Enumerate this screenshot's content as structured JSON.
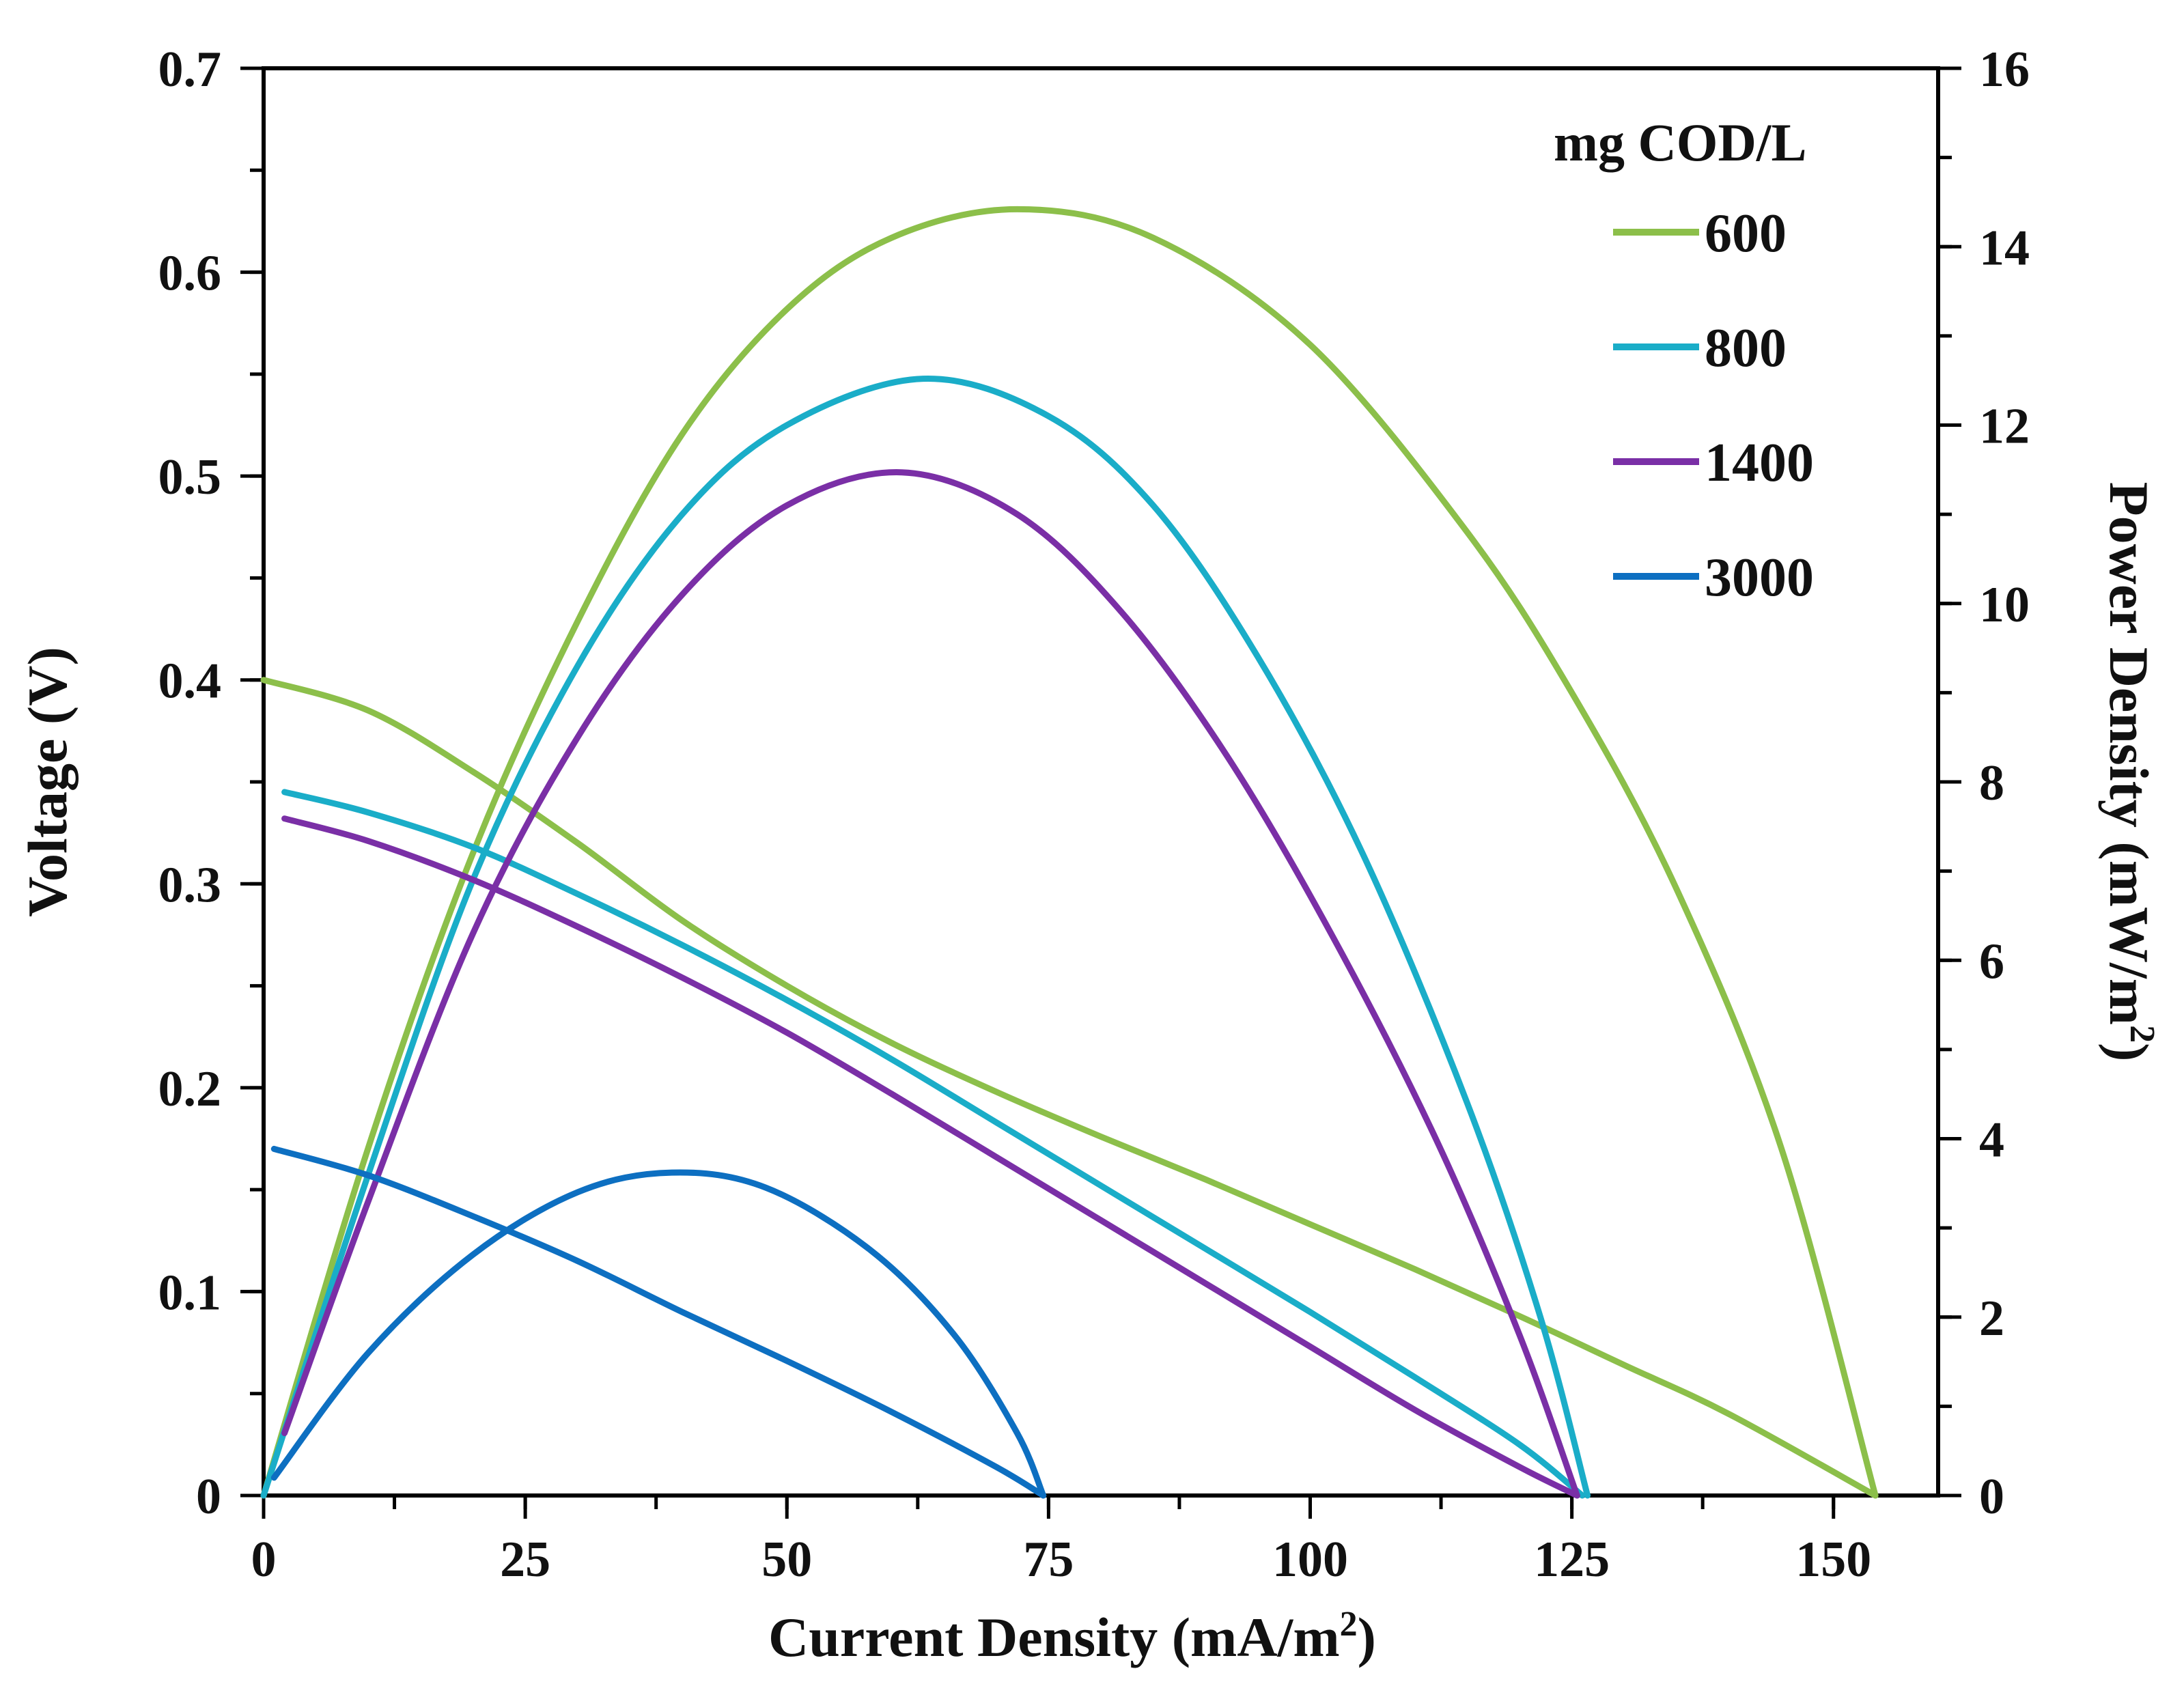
{
  "chart_data": {
    "type": "line",
    "x_axis": {
      "label": "Current Density (mA/m",
      "label_sup": "2",
      "label_end": ")",
      "range": [
        0,
        160
      ],
      "ticks": [
        0,
        25,
        50,
        75,
        100,
        125,
        150
      ],
      "tick_labels": [
        "0",
        "25",
        "50",
        "75",
        "100",
        "125",
        "150"
      ],
      "minor_step": 12.5
    },
    "y_left_axis": {
      "label": "Voltage (V)",
      "range": [
        0,
        0.7
      ],
      "ticks": [
        0,
        0.1,
        0.2,
        0.3,
        0.4,
        0.5,
        0.6,
        0.7
      ],
      "tick_labels": [
        "0",
        "0.1",
        "0.2",
        "0.3",
        "0.4",
        "0.5",
        "0.6",
        "0.7"
      ],
      "minor_step": 0.05
    },
    "y_right_axis": {
      "label": "Power Density (mW/m",
      "label_sup": "2",
      "label_end": ")",
      "range": [
        0,
        16
      ],
      "ticks": [
        0,
        2,
        4,
        6,
        8,
        10,
        12,
        14,
        16
      ],
      "tick_labels": [
        "0",
        "2",
        "4",
        "6",
        "8",
        "10",
        "12",
        "14",
        "16"
      ],
      "minor_step": 1
    },
    "legend": {
      "title": "mg COD/L",
      "position": "top-right"
    },
    "grid": false,
    "series": [
      {
        "name": "600",
        "color": "#8cbf4a",
        "polarization_voltage": {
          "axis": "left",
          "points": [
            [
              0,
              0.4
            ],
            [
              10,
              0.385
            ],
            [
              20,
              0.355
            ],
            [
              30,
              0.32
            ],
            [
              40,
              0.282
            ],
            [
              50,
              0.25
            ],
            [
              60,
              0.222
            ],
            [
              70,
              0.198
            ],
            [
              80,
              0.176
            ],
            [
              90,
              0.155
            ],
            [
              100,
              0.133
            ],
            [
              110,
              0.111
            ],
            [
              120,
              0.088
            ],
            [
              130,
              0.064
            ],
            [
              140,
              0.04
            ],
            [
              154,
              0.0
            ]
          ]
        },
        "power_density": {
          "axis": "right",
          "points": [
            [
              0,
              0
            ],
            [
              10,
              3.9
            ],
            [
              20,
              7.2
            ],
            [
              30,
              9.8
            ],
            [
              40,
              11.9
            ],
            [
              50,
              13.3
            ],
            [
              60,
              14.1
            ],
            [
              72,
              14.42
            ],
            [
              85,
              14.1
            ],
            [
              100,
              12.9
            ],
            [
              115,
              10.8
            ],
            [
              125,
              9.0
            ],
            [
              135,
              6.8
            ],
            [
              145,
              3.9
            ],
            [
              154,
              0
            ]
          ]
        }
      },
      {
        "name": "800",
        "color": "#1aadc8",
        "polarization_voltage": {
          "axis": "left",
          "points": [
            [
              2,
              0.345
            ],
            [
              10,
              0.335
            ],
            [
              20,
              0.318
            ],
            [
              30,
              0.295
            ],
            [
              40,
              0.27
            ],
            [
              50,
              0.243
            ],
            [
              60,
              0.214
            ],
            [
              70,
              0.183
            ],
            [
              80,
              0.152
            ],
            [
              90,
              0.121
            ],
            [
              100,
              0.09
            ],
            [
              110,
              0.058
            ],
            [
              120,
              0.025
            ],
            [
              126,
              0.0
            ]
          ]
        },
        "power_density": {
          "axis": "right",
          "points": [
            [
              0,
              0
            ],
            [
              10,
              3.6
            ],
            [
              20,
              6.9
            ],
            [
              30,
              9.3
            ],
            [
              40,
              11.0
            ],
            [
              50,
              12.0
            ],
            [
              63,
              12.52
            ],
            [
              75,
              12.1
            ],
            [
              85,
              11.1
            ],
            [
              95,
              9.4
            ],
            [
              105,
              7.2
            ],
            [
              115,
              4.4
            ],
            [
              122,
              2.0
            ],
            [
              126.5,
              0
            ]
          ]
        }
      },
      {
        "name": "1400",
        "color": "#7a2fa6",
        "polarization_voltage": {
          "axis": "left",
          "points": [
            [
              2,
              0.332
            ],
            [
              10,
              0.321
            ],
            [
              20,
              0.302
            ],
            [
              30,
              0.279
            ],
            [
              40,
              0.254
            ],
            [
              50,
              0.227
            ],
            [
              60,
              0.197
            ],
            [
              70,
              0.166
            ],
            [
              80,
              0.135
            ],
            [
              90,
              0.104
            ],
            [
              100,
              0.073
            ],
            [
              110,
              0.042
            ],
            [
              120,
              0.014
            ],
            [
              125.5,
              0.0
            ]
          ]
        },
        "power_density": {
          "axis": "right",
          "points": [
            [
              2,
              0.7
            ],
            [
              10,
              3.3
            ],
            [
              20,
              6.3
            ],
            [
              30,
              8.5
            ],
            [
              40,
              10.1
            ],
            [
              50,
              11.1
            ],
            [
              61,
              11.47
            ],
            [
              72,
              11.0
            ],
            [
              82,
              9.9
            ],
            [
              92,
              8.3
            ],
            [
              102,
              6.3
            ],
            [
              112,
              4.0
            ],
            [
              120,
              1.8
            ],
            [
              125.5,
              0
            ]
          ]
        }
      },
      {
        "name": "3000",
        "color": "#0d6fc1",
        "polarization_voltage": {
          "axis": "left",
          "points": [
            [
              1,
              0.17
            ],
            [
              10,
              0.157
            ],
            [
              20,
              0.137
            ],
            [
              30,
              0.115
            ],
            [
              40,
              0.09
            ],
            [
              50,
              0.066
            ],
            [
              60,
              0.041
            ],
            [
              70,
              0.014
            ],
            [
              74.5,
              0.0
            ]
          ]
        },
        "power_density": {
          "axis": "right",
          "points": [
            [
              1,
              0.2
            ],
            [
              10,
              1.6
            ],
            [
              20,
              2.7
            ],
            [
              30,
              3.4
            ],
            [
              39,
              3.62
            ],
            [
              48,
              3.45
            ],
            [
              58,
              2.75
            ],
            [
              66,
              1.8
            ],
            [
              72,
              0.7
            ],
            [
              74.5,
              0
            ]
          ]
        }
      }
    ]
  }
}
